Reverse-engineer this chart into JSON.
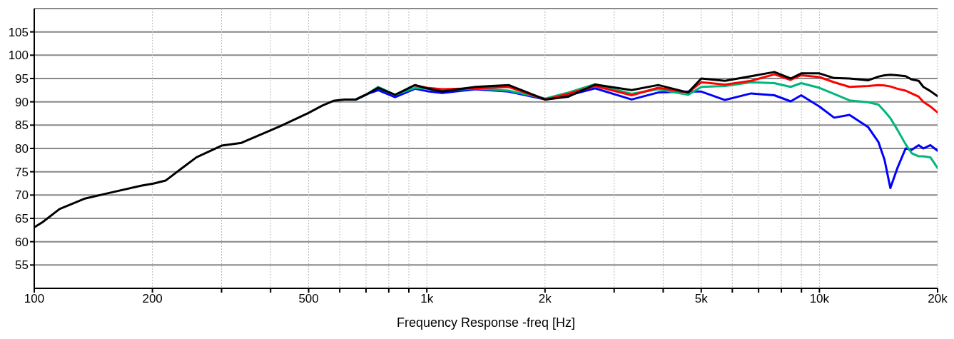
{
  "chart_data": {
    "type": "line",
    "xlabel": "Frequency Response -freq [Hz]",
    "log": "x",
    "grid": true,
    "legend": false,
    "marker": "none",
    "line_style": "solid",
    "xlim": [
      100,
      20000
    ],
    "ylim": [
      50,
      110
    ],
    "xticks": [
      100,
      200,
      {
        "value": 300,
        "label": null
      },
      {
        "value": 400,
        "label": null
      },
      500,
      {
        "value": 600,
        "label": null
      },
      {
        "value": 700,
        "label": null
      },
      {
        "value": 800,
        "label": null
      },
      {
        "value": 900,
        "label": null
      },
      {
        "value": 1000,
        "label": "1k"
      },
      {
        "value": 2000,
        "label": "2k"
      },
      {
        "value": 3000,
        "label": null
      },
      {
        "value": 4000,
        "label": null
      },
      {
        "value": 5000,
        "label": "5k"
      },
      {
        "value": 6000,
        "label": null
      },
      {
        "value": 7000,
        "label": null
      },
      {
        "value": 8000,
        "label": null
      },
      {
        "value": 9000,
        "label": null
      },
      {
        "value": 10000,
        "label": "10k"
      },
      {
        "value": 20000,
        "label": "20k"
      }
    ],
    "yticks": [
      55,
      60,
      65,
      70,
      75,
      80,
      85,
      90,
      95,
      100,
      105
    ],
    "x": [
      100,
      105,
      116,
      134,
      158,
      187,
      202,
      216,
      239,
      259,
      300,
      337,
      424,
      499,
      542,
      578,
      617,
      660,
      706,
      752,
      830,
      933,
      1000,
      1094,
      1329,
      1615,
      2002,
      2294,
      2683,
      3324,
      3884,
      4630,
      5002,
      5746,
      6700,
      7677,
      8449,
      8987,
      10000,
      10900,
      11930,
      13300,
      14130,
      14650,
      15160,
      15800,
      16580,
      17170,
      17900,
      18400,
      19170,
      20000
    ],
    "series": [
      {
        "color": "#0000ff",
        "values": [
          null,
          null,
          null,
          null,
          null,
          null,
          null,
          null,
          null,
          null,
          null,
          null,
          null,
          null,
          null,
          null,
          null,
          90.5,
          91.7,
          92.5,
          91.0,
          92.8,
          92.3,
          91.9,
          92.7,
          92.2,
          90.5,
          91.4,
          92.9,
          90.5,
          92.0,
          92.2,
          92.2,
          90.4,
          91.8,
          91.4,
          90.1,
          91.4,
          89.0,
          86.6,
          87.2,
          84.6,
          81.4,
          77.6,
          71.5,
          75.8,
          80.0,
          79.7,
          80.7,
          80.0,
          80.7,
          79.5
        ]
      },
      {
        "color": "#00b67a",
        "values": [
          null,
          null,
          null,
          null,
          null,
          null,
          null,
          null,
          null,
          null,
          null,
          null,
          null,
          null,
          null,
          null,
          null,
          90.5,
          91.7,
          93.2,
          91.5,
          93.0,
          92.8,
          92.4,
          92.9,
          92.4,
          90.7,
          92.0,
          93.8,
          91.7,
          92.7,
          91.5,
          93.2,
          93.4,
          94.2,
          94.0,
          93.2,
          94.0,
          93.0,
          91.7,
          90.3,
          89.9,
          89.4,
          88.0,
          86.5,
          84.0,
          80.9,
          79.0,
          78.3,
          78.3,
          78.1,
          75.8
        ]
      },
      {
        "color": "#ff0000",
        "values": [
          null,
          null,
          null,
          null,
          null,
          null,
          null,
          null,
          null,
          null,
          null,
          null,
          null,
          null,
          null,
          null,
          null,
          null,
          null,
          null,
          null,
          93.5,
          93.0,
          92.7,
          92.9,
          93.2,
          90.5,
          91.7,
          93.4,
          91.4,
          93.0,
          92.0,
          94.2,
          93.7,
          94.5,
          95.9,
          94.7,
          95.7,
          95.3,
          94.2,
          93.2,
          93.4,
          93.6,
          93.5,
          93.3,
          92.8,
          92.4,
          91.8,
          91.1,
          90.0,
          89.0,
          87.7
        ]
      },
      {
        "color": "#000000",
        "values": [
          63.1,
          64.2,
          67.0,
          69.2,
          70.6,
          72.0,
          72.5,
          73.1,
          75.9,
          78.1,
          80.6,
          81.2,
          84.8,
          87.6,
          89.2,
          90.2,
          90.5,
          90.5,
          91.7,
          93.0,
          91.5,
          93.6,
          92.9,
          92.2,
          93.2,
          93.6,
          90.5,
          91.1,
          93.7,
          92.5,
          93.6,
          92.0,
          95.0,
          94.5,
          95.5,
          96.4,
          95.0,
          96.1,
          96.1,
          95.1,
          95.0,
          94.6,
          95.4,
          95.7,
          95.8,
          95.7,
          95.5,
          94.8,
          94.5,
          93.2,
          92.3,
          91.2
        ]
      }
    ]
  }
}
